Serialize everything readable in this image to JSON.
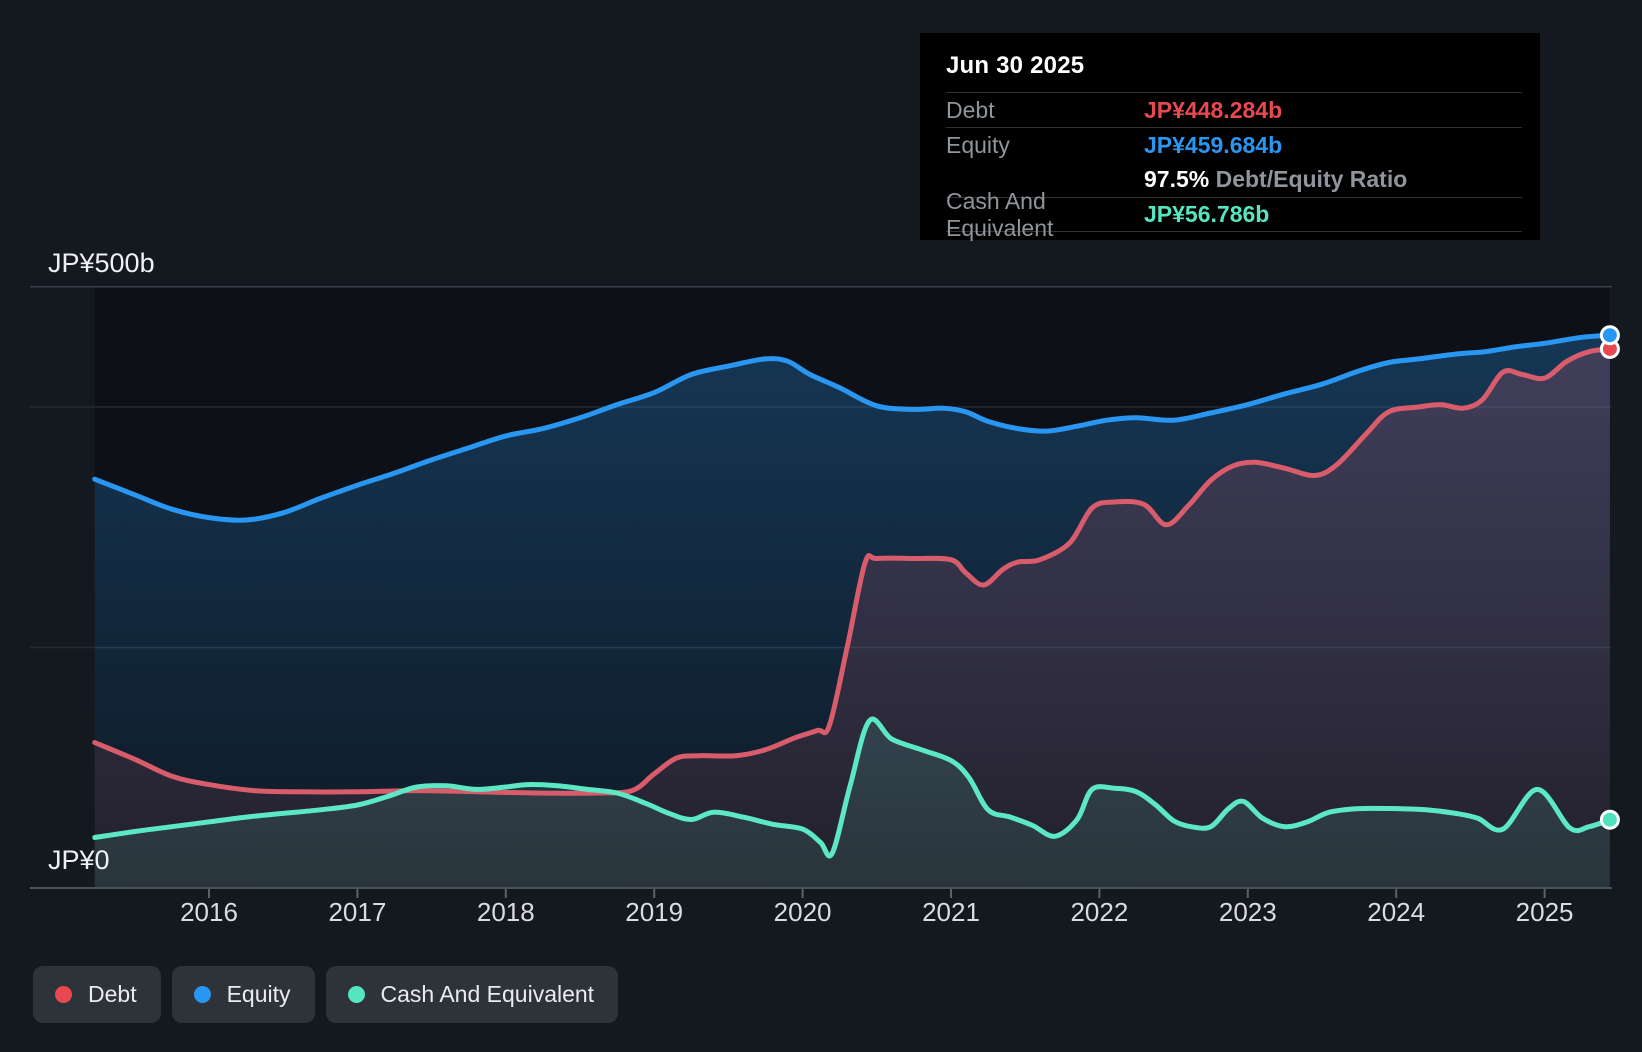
{
  "tooltip": {
    "date": "Jun 30 2025",
    "debt_label": "Debt",
    "debt_value": "JP¥448.284b",
    "equity_label": "Equity",
    "equity_value": "JP¥459.684b",
    "ratio_value": "97.5%",
    "ratio_suffix": " Debt/Equity Ratio",
    "cash_label": "Cash And Equivalent",
    "cash_value": "JP¥56.786b"
  },
  "axis": {
    "y_top_label": "JP¥500b",
    "y_bottom_label": "JP¥0",
    "x_labels": [
      "2016",
      "2017",
      "2018",
      "2019",
      "2020",
      "2021",
      "2022",
      "2023",
      "2024",
      "2025"
    ]
  },
  "legend": {
    "items": [
      {
        "label": "Debt",
        "color": "#e8484f"
      },
      {
        "label": "Equity",
        "color": "#2997f2"
      },
      {
        "label": "Cash And Equivalent",
        "color": "#55e6c1"
      }
    ]
  },
  "colors": {
    "background": "#141920",
    "plot_background": "#0d1117",
    "debt": "#e8484f",
    "equity": "#2997f2",
    "cash": "#55e6c1",
    "grid_strong": "#39404a",
    "grid_faint": "#232a33",
    "axis_line": "#4a525a"
  },
  "chart_data": {
    "type": "area",
    "title": "Debt to Equity History with Cash And Equivalents",
    "unit": "JP¥ billions",
    "x_axis": {
      "start": 2015.23,
      "end": 2025.44,
      "tick_years": [
        2016,
        2017,
        2018,
        2019,
        2020,
        2021,
        2022,
        2023,
        2024,
        2025
      ]
    },
    "y_axis": {
      "min": 0,
      "max": 500,
      "top_label": "JP¥500b",
      "bottom_label": "JP¥0",
      "gridlines_b": [
        500,
        400,
        200
      ]
    },
    "legend_position": "bottom-left",
    "series": [
      {
        "name": "Equity",
        "line_color": "#2997f2",
        "marker_color": "#2997f2",
        "fill_rgb": "41,151,242",
        "fill_alpha_top": 0.3,
        "fill_alpha_bottom": 0.06,
        "end_value_b": 459.684,
        "points": [
          [
            2015.23,
            340
          ],
          [
            2015.5,
            327
          ],
          [
            2015.75,
            315
          ],
          [
            2016.0,
            308
          ],
          [
            2016.25,
            306
          ],
          [
            2016.5,
            312
          ],
          [
            2016.75,
            324
          ],
          [
            2017.0,
            335
          ],
          [
            2017.25,
            345
          ],
          [
            2017.5,
            356
          ],
          [
            2017.75,
            366
          ],
          [
            2018.0,
            376
          ],
          [
            2018.25,
            382
          ],
          [
            2018.5,
            391
          ],
          [
            2018.75,
            402
          ],
          [
            2019.0,
            412
          ],
          [
            2019.25,
            427
          ],
          [
            2019.5,
            434
          ],
          [
            2019.75,
            440
          ],
          [
            2019.9,
            438
          ],
          [
            2020.05,
            427
          ],
          [
            2020.25,
            416
          ],
          [
            2020.5,
            401
          ],
          [
            2020.75,
            398
          ],
          [
            2020.95,
            399
          ],
          [
            2021.1,
            396
          ],
          [
            2021.25,
            388
          ],
          [
            2021.45,
            382
          ],
          [
            2021.65,
            380
          ],
          [
            2021.85,
            384
          ],
          [
            2022.05,
            389
          ],
          [
            2022.25,
            391
          ],
          [
            2022.5,
            389
          ],
          [
            2022.75,
            395
          ],
          [
            2023.0,
            402
          ],
          [
            2023.25,
            411
          ],
          [
            2023.5,
            419
          ],
          [
            2023.75,
            430
          ],
          [
            2023.95,
            437
          ],
          [
            2024.15,
            440
          ],
          [
            2024.4,
            444
          ],
          [
            2024.6,
            446
          ],
          [
            2024.8,
            450
          ],
          [
            2025.0,
            453
          ],
          [
            2025.25,
            458
          ],
          [
            2025.44,
            459.7
          ]
        ]
      },
      {
        "name": "Debt",
        "line_color": "#d85c6b",
        "marker_color": "#e8474f",
        "fill_rgb": "214,90,110",
        "fill_alpha_top": 0.24,
        "fill_alpha_bottom": 0.1,
        "end_value_b": 448.284,
        "points": [
          [
            2015.23,
            121
          ],
          [
            2015.5,
            107
          ],
          [
            2015.75,
            93
          ],
          [
            2016.0,
            86
          ],
          [
            2016.3,
            81
          ],
          [
            2016.6,
            80
          ],
          [
            2017.0,
            80
          ],
          [
            2017.4,
            81
          ],
          [
            2017.8,
            80
          ],
          [
            2018.2,
            79
          ],
          [
            2018.6,
            79
          ],
          [
            2018.85,
            81
          ],
          [
            2019.0,
            95
          ],
          [
            2019.15,
            108
          ],
          [
            2019.3,
            110
          ],
          [
            2019.55,
            110
          ],
          [
            2019.75,
            115
          ],
          [
            2019.95,
            125
          ],
          [
            2020.1,
            131
          ],
          [
            2020.18,
            135
          ],
          [
            2020.3,
            200
          ],
          [
            2020.42,
            270
          ],
          [
            2020.5,
            274
          ],
          [
            2020.75,
            274
          ],
          [
            2021.0,
            273
          ],
          [
            2021.1,
            262
          ],
          [
            2021.22,
            252
          ],
          [
            2021.35,
            265
          ],
          [
            2021.45,
            271
          ],
          [
            2021.6,
            273
          ],
          [
            2021.8,
            287
          ],
          [
            2021.95,
            316
          ],
          [
            2022.1,
            321
          ],
          [
            2022.3,
            319
          ],
          [
            2022.45,
            302
          ],
          [
            2022.6,
            318
          ],
          [
            2022.75,
            339
          ],
          [
            2022.9,
            351
          ],
          [
            2023.05,
            354
          ],
          [
            2023.25,
            349
          ],
          [
            2023.45,
            343
          ],
          [
            2023.6,
            352
          ],
          [
            2023.8,
            378
          ],
          [
            2023.95,
            396
          ],
          [
            2024.15,
            400
          ],
          [
            2024.3,
            402
          ],
          [
            2024.45,
            399
          ],
          [
            2024.58,
            406
          ],
          [
            2024.72,
            429
          ],
          [
            2024.85,
            427
          ],
          [
            2025.0,
            424
          ],
          [
            2025.15,
            438
          ],
          [
            2025.3,
            446
          ],
          [
            2025.44,
            448.3
          ]
        ]
      },
      {
        "name": "Cash And Equivalent",
        "line_color": "#5ce7c5",
        "marker_color": "#4fe3bd",
        "fill_rgb": "92,231,197",
        "fill_alpha_top": 0.2,
        "fill_alpha_bottom": 0.1,
        "end_value_b": 56.786,
        "points": [
          [
            2015.23,
            42
          ],
          [
            2015.5,
            47
          ],
          [
            2015.75,
            51
          ],
          [
            2016.0,
            55
          ],
          [
            2016.25,
            59
          ],
          [
            2016.5,
            62
          ],
          [
            2016.75,
            65
          ],
          [
            2017.0,
            69
          ],
          [
            2017.2,
            76
          ],
          [
            2017.4,
            84
          ],
          [
            2017.6,
            85
          ],
          [
            2017.8,
            82
          ],
          [
            2018.0,
            84
          ],
          [
            2018.15,
            86
          ],
          [
            2018.35,
            85
          ],
          [
            2018.55,
            82
          ],
          [
            2018.75,
            79
          ],
          [
            2018.95,
            70
          ],
          [
            2019.1,
            62
          ],
          [
            2019.25,
            57
          ],
          [
            2019.4,
            63
          ],
          [
            2019.6,
            59
          ],
          [
            2019.8,
            53
          ],
          [
            2020.0,
            49
          ],
          [
            2020.12,
            38
          ],
          [
            2020.2,
            29
          ],
          [
            2020.32,
            85
          ],
          [
            2020.45,
            139
          ],
          [
            2020.6,
            124
          ],
          [
            2020.8,
            115
          ],
          [
            2021.0,
            106
          ],
          [
            2021.12,
            92
          ],
          [
            2021.25,
            65
          ],
          [
            2021.4,
            59
          ],
          [
            2021.55,
            52
          ],
          [
            2021.7,
            43
          ],
          [
            2021.85,
            57
          ],
          [
            2021.95,
            82
          ],
          [
            2022.1,
            83
          ],
          [
            2022.25,
            80
          ],
          [
            2022.38,
            69
          ],
          [
            2022.5,
            56
          ],
          [
            2022.62,
            51
          ],
          [
            2022.75,
            51
          ],
          [
            2022.87,
            66
          ],
          [
            2022.97,
            72
          ],
          [
            2023.1,
            58
          ],
          [
            2023.25,
            51
          ],
          [
            2023.4,
            55
          ],
          [
            2023.55,
            63
          ],
          [
            2023.75,
            66
          ],
          [
            2024.0,
            66
          ],
          [
            2024.2,
            65
          ],
          [
            2024.4,
            62
          ],
          [
            2024.55,
            58
          ],
          [
            2024.72,
            49
          ],
          [
            2024.95,
            82
          ],
          [
            2025.17,
            50
          ],
          [
            2025.3,
            51
          ],
          [
            2025.44,
            56.8
          ]
        ]
      }
    ]
  }
}
